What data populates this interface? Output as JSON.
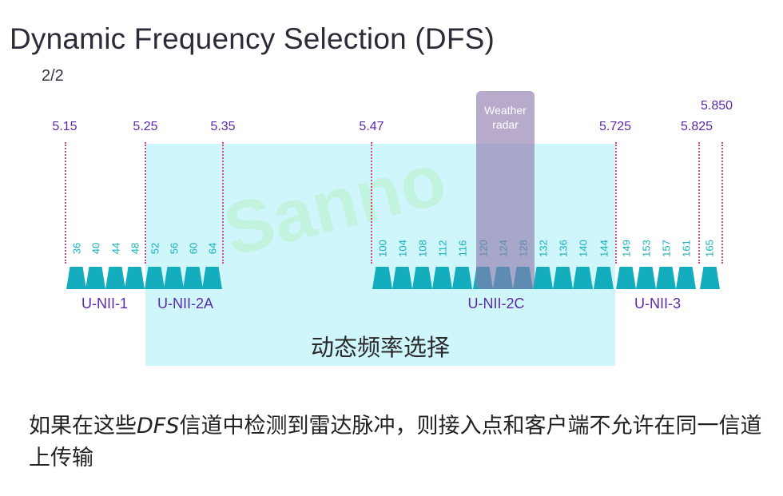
{
  "title": "Dynamic Frequency Selection (DFS)",
  "page_indicator": "2/2",
  "frequency_markers": [
    "5.15",
    "5.25",
    "5.35",
    "5.47",
    "5.725",
    "5.825",
    "5.850"
  ],
  "weather_radar_label": "Weather radar",
  "dfs_region_label": "动态频率选择",
  "watermark": "Sanno",
  "bands": [
    "U-NII-1",
    "U-NII-2A",
    "U-NII-2C",
    "U-NII-3"
  ],
  "channels": [
    "36",
    "40",
    "44",
    "48",
    "52",
    "56",
    "60",
    "64",
    "100",
    "104",
    "108",
    "112",
    "116",
    "120",
    "124",
    "128",
    "132",
    "136",
    "140",
    "144",
    "149",
    "153",
    "157",
    "161",
    "165"
  ],
  "caption_part1": "如果在这些",
  "caption_italic": "DFS",
  "caption_part2": "信道中检测到雷达脉冲，则接入点和客户端不允许在同一信道上传输",
  "colors": {
    "dfs_band": "#cff6fb",
    "channel_shape": "#14adbd",
    "channel_text": "#19b0ba",
    "freq_text": "#5a2aa8",
    "boundary_line": "#d6467a",
    "weather_box": "#8c76aa"
  }
}
